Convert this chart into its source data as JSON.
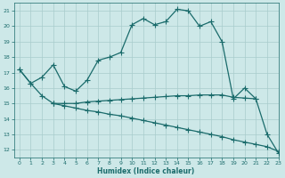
{
  "xlabel": "Humidex (Indice chaleur)",
  "bg_color": "#cde8e8",
  "grid_color": "#b8d8d8",
  "line_color": "#1a6b6b",
  "xlim": [
    -0.5,
    23
  ],
  "ylim": [
    11.5,
    21.5
  ],
  "yticks": [
    12,
    13,
    14,
    15,
    16,
    17,
    18,
    19,
    20,
    21
  ],
  "xticks": [
    0,
    1,
    2,
    3,
    4,
    5,
    6,
    7,
    8,
    9,
    10,
    11,
    12,
    13,
    14,
    15,
    16,
    17,
    18,
    19,
    20,
    21,
    22,
    23
  ],
  "curve_main": {
    "x": [
      0,
      1,
      2,
      3,
      4,
      5,
      6,
      7,
      8,
      9,
      10,
      11,
      12,
      13,
      14,
      15,
      16,
      17,
      18,
      19,
      20,
      21,
      22,
      23
    ],
    "y": [
      17.2,
      16.3,
      16.7,
      17.5,
      16.1,
      15.8,
      16.5,
      17.8,
      18.0,
      18.3,
      20.1,
      20.5,
      20.1,
      20.3,
      21.1,
      21.0,
      20.0,
      20.3,
      19.0,
      15.3,
      16.0,
      15.3,
      13.0,
      11.8
    ]
  },
  "curve_descend_start": {
    "x": [
      0,
      1,
      2,
      3
    ],
    "y": [
      17.2,
      16.3,
      15.5,
      15.0
    ]
  },
  "curve_flat_upper": {
    "x": [
      3,
      4,
      5,
      6,
      7,
      8,
      9,
      10,
      11,
      12,
      13,
      14,
      15,
      16,
      17,
      18,
      19,
      20,
      21
    ],
    "y": [
      15.0,
      15.0,
      15.0,
      15.1,
      15.15,
      15.2,
      15.25,
      15.3,
      15.35,
      15.4,
      15.45,
      15.5,
      15.5,
      15.55,
      15.55,
      15.55,
      15.4,
      15.35,
      15.3
    ]
  },
  "curve_descend_long": {
    "x": [
      3,
      4,
      5,
      6,
      7,
      8,
      9,
      10,
      11,
      12,
      13,
      14,
      15,
      16,
      17,
      18,
      19,
      20,
      21,
      22,
      23
    ],
    "y": [
      15.0,
      14.85,
      14.7,
      14.55,
      14.45,
      14.3,
      14.2,
      14.05,
      13.9,
      13.75,
      13.6,
      13.45,
      13.3,
      13.15,
      13.0,
      12.85,
      12.65,
      12.5,
      12.35,
      12.2,
      11.9
    ]
  }
}
